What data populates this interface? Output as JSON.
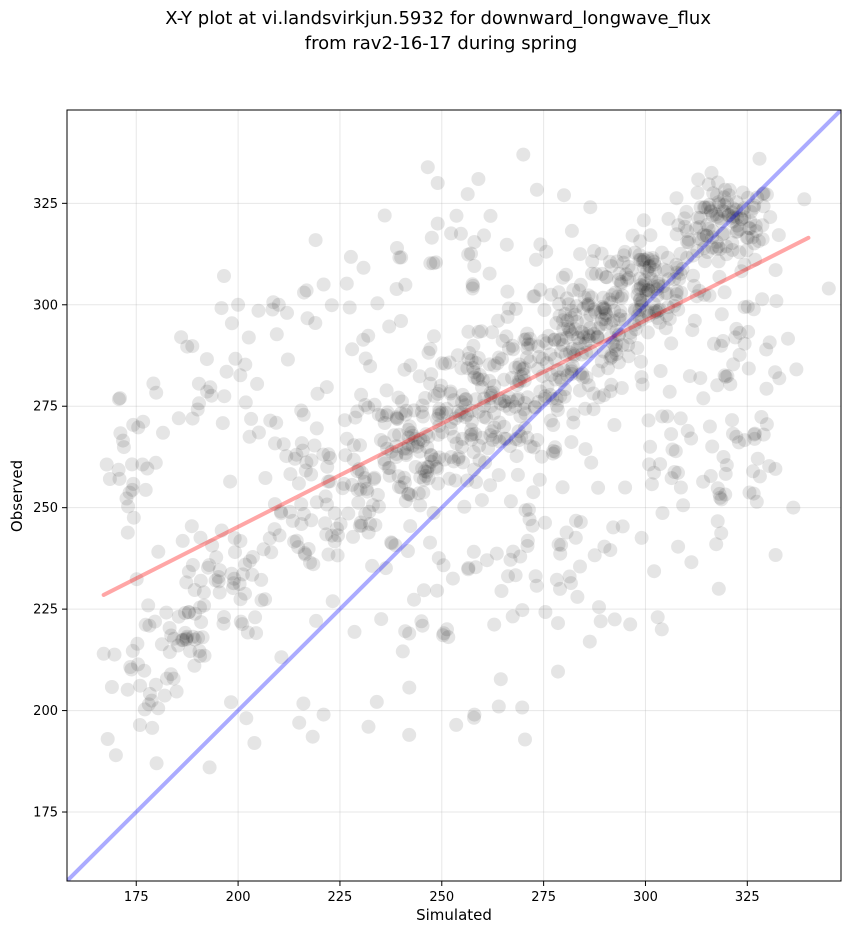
{
  "chart_data": {
    "type": "scatter",
    "title": "X-Y plot at vi.landsvirkjun.5932 for downward_longwave_flux\nfrom rav2-16-17 during spring",
    "title_lines": [
      "X-Y plot at vi.landsvirkjun.5932 for downward_longwave_flux",
      "from rav2-16-17 during spring"
    ],
    "xlabel": "Simulated",
    "ylabel": "Observed",
    "xlim": [
      158,
      348
    ],
    "ylim": [
      158,
      348
    ],
    "xticks": [
      175,
      200,
      225,
      250,
      275,
      300,
      325
    ],
    "yticks": [
      175,
      200,
      225,
      250,
      275,
      300,
      325
    ],
    "grid": true,
    "point_color": "#000000",
    "point_alpha": 0.1,
    "regression_line": {
      "color": "#ff0000",
      "x": [
        167,
        340
      ],
      "y": [
        228.5,
        316.5
      ]
    },
    "identity_line": {
      "color": "#0000ff",
      "x": [
        158,
        348
      ],
      "y": [
        158,
        348
      ]
    },
    "series": [
      {
        "clusters": [
          {
            "cx": 320,
            "cy": 320,
            "sx": 6,
            "sy": 5,
            "n": 110
          },
          {
            "cx": 300,
            "cy": 305,
            "sx": 7,
            "sy": 7,
            "n": 150
          },
          {
            "cx": 285,
            "cy": 292,
            "sx": 7,
            "sy": 8,
            "n": 120
          },
          {
            "cx": 270,
            "cy": 280,
            "sx": 8,
            "sy": 9,
            "n": 110
          },
          {
            "cx": 255,
            "cy": 272,
            "sx": 8,
            "sy": 9,
            "n": 100
          },
          {
            "cx": 243,
            "cy": 265,
            "sx": 7,
            "sy": 9,
            "n": 80
          },
          {
            "cx": 230,
            "cy": 255,
            "sx": 8,
            "sy": 10,
            "n": 60
          },
          {
            "cx": 215,
            "cy": 250,
            "sx": 7,
            "sy": 12,
            "n": 45
          },
          {
            "cx": 197,
            "cy": 232,
            "sx": 5,
            "sy": 7,
            "n": 45
          },
          {
            "cx": 186,
            "cy": 219,
            "sx": 4,
            "sy": 5,
            "n": 35
          },
          {
            "cx": 178,
            "cy": 205,
            "sx": 4,
            "sy": 6,
            "n": 22
          },
          {
            "cx": 175,
            "cy": 255,
            "sx": 5,
            "sy": 14,
            "n": 28
          },
          {
            "cx": 195,
            "cy": 280,
            "sx": 6,
            "sy": 9,
            "n": 25
          },
          {
            "cx": 225,
            "cy": 295,
            "sx": 15,
            "sy": 10,
            "n": 35
          },
          {
            "cx": 255,
            "cy": 312,
            "sx": 12,
            "sy": 10,
            "n": 30
          },
          {
            "cx": 275,
            "cy": 240,
            "sx": 10,
            "sy": 15,
            "n": 50
          },
          {
            "cx": 305,
            "cy": 265,
            "sx": 12,
            "sy": 14,
            "n": 55
          },
          {
            "cx": 325,
            "cy": 285,
            "sx": 6,
            "sy": 15,
            "n": 45
          },
          {
            "cx": 255,
            "cy": 225,
            "sx": 15,
            "sy": 12,
            "n": 25
          },
          {
            "cx": 218,
            "cy": 208,
            "sx": 15,
            "sy": 10,
            "n": 10
          },
          {
            "cx": 320,
            "cy": 255,
            "sx": 6,
            "sy": 12,
            "n": 20
          }
        ],
        "outliers": [
          [
            170,
            189
          ],
          [
            193,
            186
          ],
          [
            180,
            187
          ],
          [
            204,
            192
          ],
          [
            242,
            194
          ],
          [
            232,
            196
          ],
          [
            258,
            199
          ],
          [
            264,
            201
          ],
          [
            221,
            199
          ],
          [
            215,
            197
          ],
          [
            270,
            337
          ],
          [
            259,
            331
          ],
          [
            249,
            330
          ],
          [
            280,
            327
          ],
          [
            328,
            336
          ],
          [
            339,
            326
          ],
          [
            168,
            193
          ],
          [
            167,
            214
          ],
          [
            242,
            219
          ],
          [
            245,
            222
          ],
          [
            303,
            223
          ],
          [
            304,
            220
          ],
          [
            318,
            230
          ],
          [
            289,
            222
          ],
          [
            210,
            300
          ],
          [
            212,
            298
          ],
          [
            200,
            300
          ],
          [
            186,
            292
          ],
          [
            221,
            305
          ],
          [
            236,
            322
          ],
          [
            239,
            314
          ],
          [
            249,
            320
          ],
          [
            240,
            296
          ],
          [
            171,
            277
          ],
          [
            345,
            304
          ]
        ]
      }
    ]
  }
}
